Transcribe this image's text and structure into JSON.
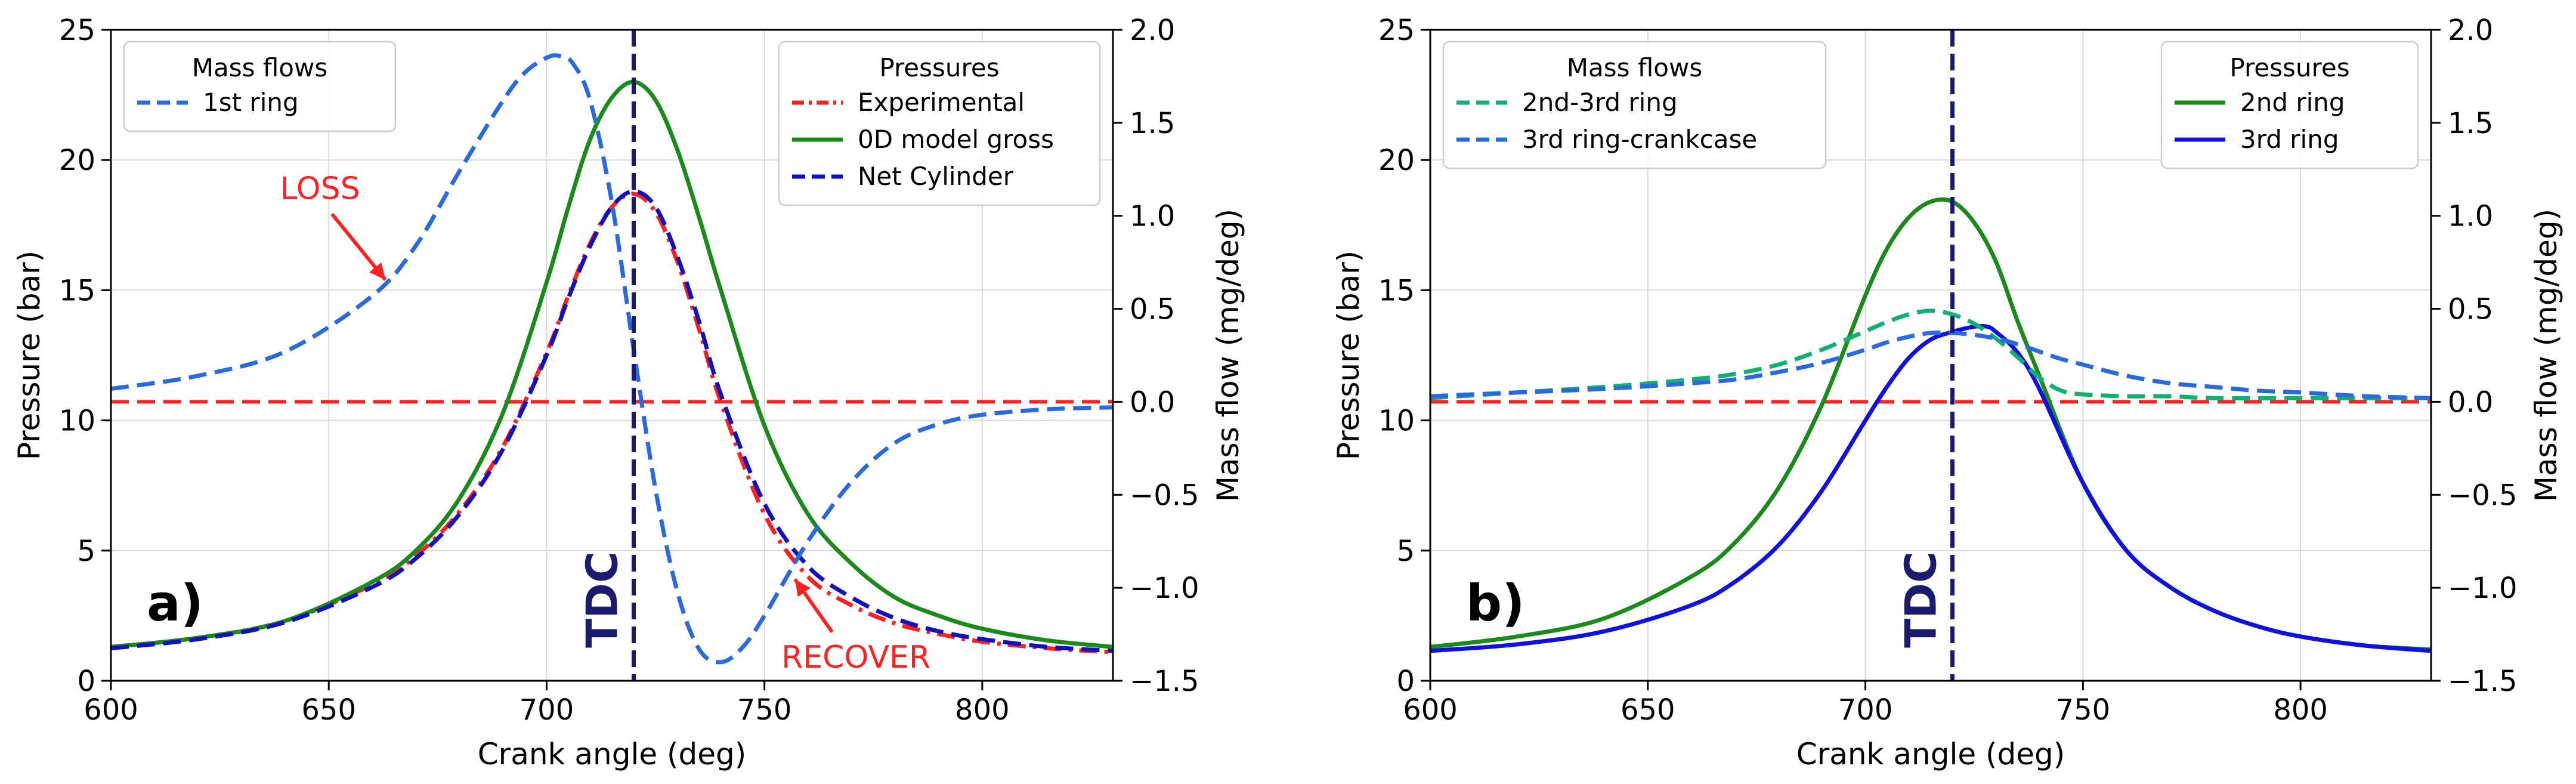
{
  "chart_data": [
    {
      "id": "a",
      "type": "line",
      "panel_label": "a)",
      "xlabel": "Crank angle (deg)",
      "ylabel_left": "Pressure (bar)",
      "ylabel_right": "Mass flow (mg/deg)",
      "xlim": [
        600,
        830
      ],
      "ylim_left": [
        0,
        25
      ],
      "ylim_right": [
        -1.5,
        2.0
      ],
      "xticks": [
        600,
        650,
        700,
        750,
        800
      ],
      "xtick_labels": [
        "600",
        "650",
        "700",
        "750",
        "800"
      ],
      "yticks_left": [
        0,
        5,
        10,
        15,
        20,
        25
      ],
      "ytick_labels_left": [
        "0",
        "5",
        "10",
        "15",
        "20",
        "25"
      ],
      "yticks_right": [
        -1.5,
        -1.0,
        -0.5,
        0.0,
        0.5,
        1.0,
        1.5,
        2.0
      ],
      "ytick_labels_right": [
        "−1.5",
        "−1.0",
        "−0.5",
        "0.0",
        "0.5",
        "1.0",
        "1.5",
        "2.0"
      ],
      "grid": true,
      "tdc": {
        "x": 720,
        "label": "TDC",
        "color": "#1a1a6e"
      },
      "zero_line": {
        "value": 0.0,
        "axis": "right",
        "color": "#ff2020"
      },
      "series": [
        {
          "name": "Experimental",
          "axis": "left",
          "color": "#ff2020",
          "dash": "dashdot",
          "x": [
            600,
            620,
            640,
            660,
            670,
            680,
            690,
            700,
            705,
            710,
            715,
            720,
            725,
            730,
            735,
            740,
            750,
            760,
            770,
            780,
            790,
            800,
            815,
            830
          ],
          "values": [
            1.3,
            1.65,
            2.3,
            3.7,
            4.8,
            6.5,
            9.0,
            12.6,
            14.8,
            16.8,
            18.2,
            18.7,
            18.0,
            16.1,
            13.5,
            10.7,
            6.4,
            4.0,
            2.9,
            2.2,
            1.8,
            1.5,
            1.25,
            1.1
          ]
        },
        {
          "name": "0D model gross",
          "axis": "left",
          "color": "#1a8a1a",
          "dash": "solid",
          "x": [
            600,
            620,
            640,
            660,
            670,
            680,
            690,
            700,
            705,
            710,
            715,
            720,
            725,
            730,
            735,
            740,
            750,
            760,
            770,
            780,
            790,
            800,
            815,
            830
          ],
          "values": [
            1.3,
            1.65,
            2.3,
            3.8,
            5.0,
            7.0,
            10.3,
            15.3,
            18.2,
            20.8,
            22.4,
            23.0,
            22.3,
            20.4,
            17.8,
            15.0,
            9.8,
            6.4,
            4.5,
            3.2,
            2.5,
            2.0,
            1.55,
            1.3
          ]
        },
        {
          "name": "Net Cylinder",
          "axis": "left",
          "color": "#1010c0",
          "dash": "dashed",
          "x": [
            600,
            620,
            640,
            660,
            670,
            680,
            690,
            700,
            705,
            710,
            715,
            720,
            725,
            730,
            735,
            740,
            750,
            760,
            770,
            780,
            790,
            800,
            815,
            830
          ],
          "values": [
            1.25,
            1.6,
            2.25,
            3.6,
            4.7,
            6.4,
            8.9,
            12.5,
            14.7,
            16.7,
            18.2,
            18.8,
            18.2,
            16.3,
            13.8,
            11.0,
            6.8,
            4.4,
            3.2,
            2.4,
            1.9,
            1.6,
            1.3,
            1.15
          ]
        },
        {
          "name": "1st ring",
          "axis": "right",
          "color": "#2a6adf",
          "dash": "dashed",
          "x": [
            600,
            620,
            640,
            660,
            670,
            680,
            690,
            695,
            700,
            703,
            706,
            710,
            715,
            720,
            725,
            730,
            735,
            740,
            745,
            750,
            760,
            770,
            780,
            790,
            800,
            815,
            830
          ],
          "values": [
            0.07,
            0.14,
            0.27,
            0.57,
            0.84,
            1.24,
            1.62,
            1.77,
            1.85,
            1.86,
            1.82,
            1.62,
            1.07,
            0.28,
            -0.47,
            -1.02,
            -1.33,
            -1.4,
            -1.32,
            -1.15,
            -0.75,
            -0.43,
            -0.22,
            -0.12,
            -0.07,
            -0.04,
            -0.03
          ]
        }
      ],
      "legends": [
        {
          "title": "Mass flows",
          "position": "top-left",
          "entries": [
            "1st ring"
          ]
        },
        {
          "title": "Pressures",
          "position": "top-right",
          "entries": [
            "Experimental",
            "0D model gross",
            "Net Cylinder"
          ]
        }
      ],
      "annotations": [
        {
          "text": "LOSS",
          "color": "#ff2020",
          "x": 648,
          "y_left": 18.5,
          "arrow_to": {
            "x": 663,
            "y_left": 15.4
          }
        },
        {
          "text": "RECOVER",
          "color": "#ff2020",
          "x": 771,
          "y_left": 0.5,
          "arrow_to": {
            "x": 757,
            "y_left": 3.9
          }
        }
      ]
    },
    {
      "id": "b",
      "type": "line",
      "panel_label": "b)",
      "xlabel": "Crank angle (deg)",
      "ylabel_left": "Pressure (bar)",
      "ylabel_right": "Mass flow (mg/deg)",
      "xlim": [
        600,
        830
      ],
      "ylim_left": [
        0,
        25
      ],
      "ylim_right": [
        -1.5,
        2.0
      ],
      "xticks": [
        600,
        650,
        700,
        750,
        800
      ],
      "xtick_labels": [
        "600",
        "650",
        "700",
        "750",
        "800"
      ],
      "yticks_left": [
        0,
        5,
        10,
        15,
        20,
        25
      ],
      "ytick_labels_left": [
        "0",
        "5",
        "10",
        "15",
        "20",
        "25"
      ],
      "yticks_right": [
        -1.5,
        -1.0,
        -0.5,
        0.0,
        0.5,
        1.0,
        1.5,
        2.0
      ],
      "ytick_labels_right": [
        "−1.5",
        "−1.0",
        "−0.5",
        "0.0",
        "0.5",
        "1.0",
        "1.5",
        "2.0"
      ],
      "grid": true,
      "tdc": {
        "x": 720,
        "label": "TDC",
        "color": "#1a1a6e"
      },
      "zero_line": {
        "value": 0.0,
        "axis": "right",
        "color": "#ff2020"
      },
      "series": [
        {
          "name": "2nd ring",
          "axis": "left",
          "color": "#1a8a1a",
          "dash": "solid",
          "x": [
            600,
            620,
            640,
            660,
            670,
            680,
            690,
            700,
            705,
            710,
            715,
            720,
            725,
            730,
            735,
            740,
            750,
            760,
            770,
            780,
            790,
            800,
            815,
            830
          ],
          "values": [
            1.3,
            1.7,
            2.4,
            4.0,
            5.3,
            7.4,
            10.6,
            14.8,
            16.6,
            17.8,
            18.4,
            18.4,
            17.6,
            16.1,
            13.8,
            11.7,
            7.6,
            5.0,
            3.6,
            2.7,
            2.1,
            1.7,
            1.35,
            1.2
          ]
        },
        {
          "name": "3rd ring",
          "axis": "left",
          "color": "#1010e0",
          "dash": "solid",
          "x": [
            600,
            620,
            640,
            660,
            670,
            680,
            690,
            700,
            705,
            710,
            715,
            720,
            725,
            728,
            730,
            735,
            740,
            750,
            760,
            770,
            780,
            790,
            800,
            815,
            830
          ],
          "values": [
            1.15,
            1.4,
            1.9,
            2.9,
            3.8,
            5.2,
            7.3,
            10.0,
            11.3,
            12.4,
            13.1,
            13.4,
            13.6,
            13.6,
            13.4,
            12.6,
            11.2,
            7.6,
            5.0,
            3.6,
            2.7,
            2.1,
            1.7,
            1.35,
            1.15
          ]
        },
        {
          "name": "2nd-3rd ring",
          "axis": "right",
          "color": "#10b070",
          "dash": "dashed",
          "x": [
            600,
            620,
            640,
            660,
            670,
            680,
            690,
            700,
            705,
            710,
            715,
            720,
            725,
            730,
            735,
            740,
            745,
            750,
            760,
            770,
            780,
            800,
            830
          ],
          "values": [
            0.02,
            0.05,
            0.08,
            0.12,
            0.15,
            0.2,
            0.28,
            0.38,
            0.43,
            0.47,
            0.49,
            0.47,
            0.42,
            0.34,
            0.24,
            0.13,
            0.06,
            0.04,
            0.03,
            0.03,
            0.02,
            0.02,
            0.02
          ]
        },
        {
          "name": "3rd ring-crankcase",
          "axis": "right",
          "color": "#2a6adf",
          "dash": "dashed",
          "x": [
            600,
            620,
            640,
            660,
            670,
            680,
            690,
            700,
            705,
            710,
            715,
            720,
            725,
            730,
            735,
            740,
            745,
            750,
            760,
            770,
            780,
            790,
            800,
            815,
            830
          ],
          "values": [
            0.03,
            0.05,
            0.07,
            0.1,
            0.12,
            0.16,
            0.21,
            0.28,
            0.32,
            0.35,
            0.37,
            0.37,
            0.36,
            0.34,
            0.31,
            0.27,
            0.23,
            0.2,
            0.14,
            0.1,
            0.08,
            0.06,
            0.05,
            0.03,
            0.02
          ]
        }
      ],
      "legends": [
        {
          "title": "Mass flows",
          "position": "top-left",
          "entries": [
            "2nd-3rd ring",
            "3rd ring-crankcase"
          ]
        },
        {
          "title": "Pressures",
          "position": "top-right",
          "entries": [
            "2nd ring",
            "3rd ring"
          ]
        }
      ],
      "annotations": []
    }
  ]
}
